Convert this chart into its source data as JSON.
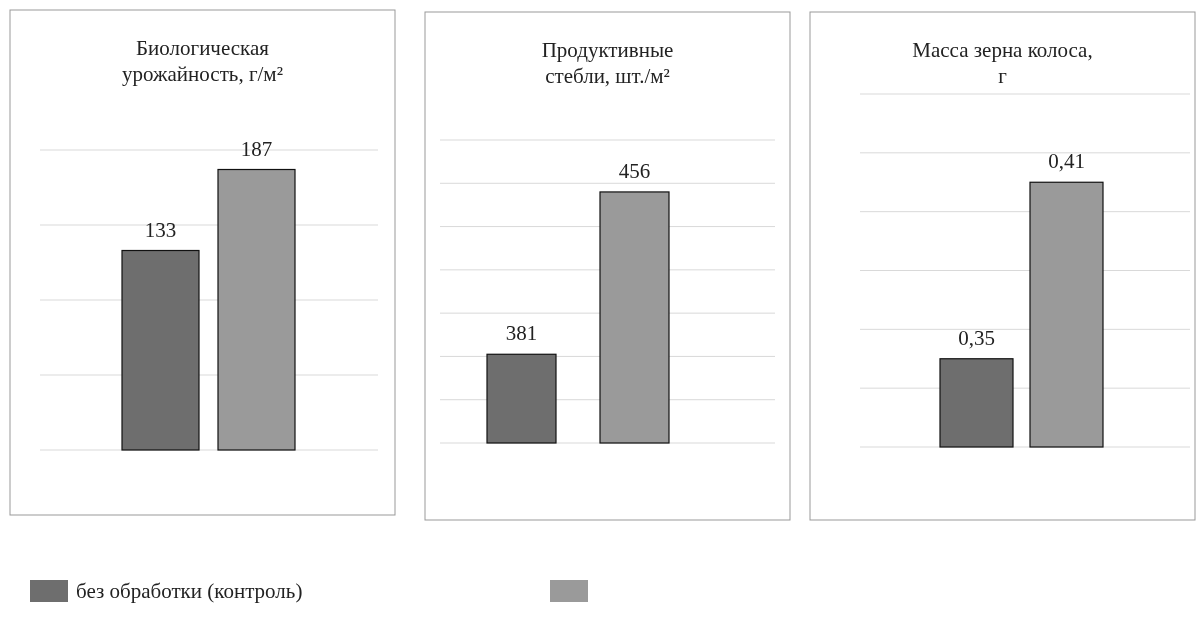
{
  "chart_data": [
    {
      "type": "bar",
      "title": "Биологическая урожайность, г/м²",
      "categories": [
        null
      ],
      "series": [
        {
          "name": "без обработки (контроль)",
          "color": "#6e6e6e",
          "values": [
            133
          ]
        },
        {
          "color": "#9a9a9a",
          "values": [
            187
          ]
        }
      ],
      "ylim": [
        0,
        200
      ],
      "yticks": [
        {
          "value": 0,
          "label": null
        },
        {
          "value": 50,
          "label": null
        },
        {
          "value": 100,
          "label": null
        },
        {
          "value": 150,
          "label": null
        },
        {
          "value": 200,
          "label": null
        }
      ],
      "tick_labels": false,
      "grid": "y",
      "data_labels": true,
      "legend": "bottom"
    },
    {
      "type": "bar",
      "title": "Продуктивные стебли, шт./м²",
      "categories": [
        null
      ],
      "series": [
        {
          "color": "#6e6e6e",
          "values": [
            381
          ]
        },
        {
          "color": "#9a9a9a",
          "values": [
            456
          ]
        }
      ],
      "ylim": [
        340,
        480
      ],
      "yticks": [
        {
          "value": 340,
          "label": null
        },
        {
          "value": 360,
          "label": null
        },
        {
          "value": 380,
          "label": null
        },
        {
          "value": 400,
          "label": null
        },
        {
          "value": 420,
          "label": null
        },
        {
          "value": 440,
          "label": null
        },
        {
          "value": 460,
          "label": null
        },
        {
          "value": 480,
          "label": null
        }
      ],
      "tick_labels": false,
      "grid": "y",
      "data_labels": true
    },
    {
      "type": "bar",
      "title": "Масса зерна колоса, г",
      "categories": [
        null
      ],
      "series": [
        {
          "color": "#6e6e6e",
          "values": [
            0.35
          ],
          "value_labels": [
            "0,35"
          ]
        },
        {
          "color": "#9a9a9a",
          "values": [
            0.41
          ],
          "value_labels": [
            "0,41"
          ]
        }
      ],
      "ylim": [
        0.32,
        0.44
      ],
      "yticks": [
        {
          "value": 0.32,
          "label": null
        },
        {
          "value": 0.34,
          "label": null
        },
        {
          "value": 0.36,
          "label": null
        },
        {
          "value": 0.38,
          "label": null
        },
        {
          "value": 0.4,
          "label": null
        },
        {
          "value": 0.42,
          "label": null
        },
        {
          "value": 0.44,
          "label": null
        }
      ],
      "tick_labels": false,
      "grid": "y"
    }
  ]
}
